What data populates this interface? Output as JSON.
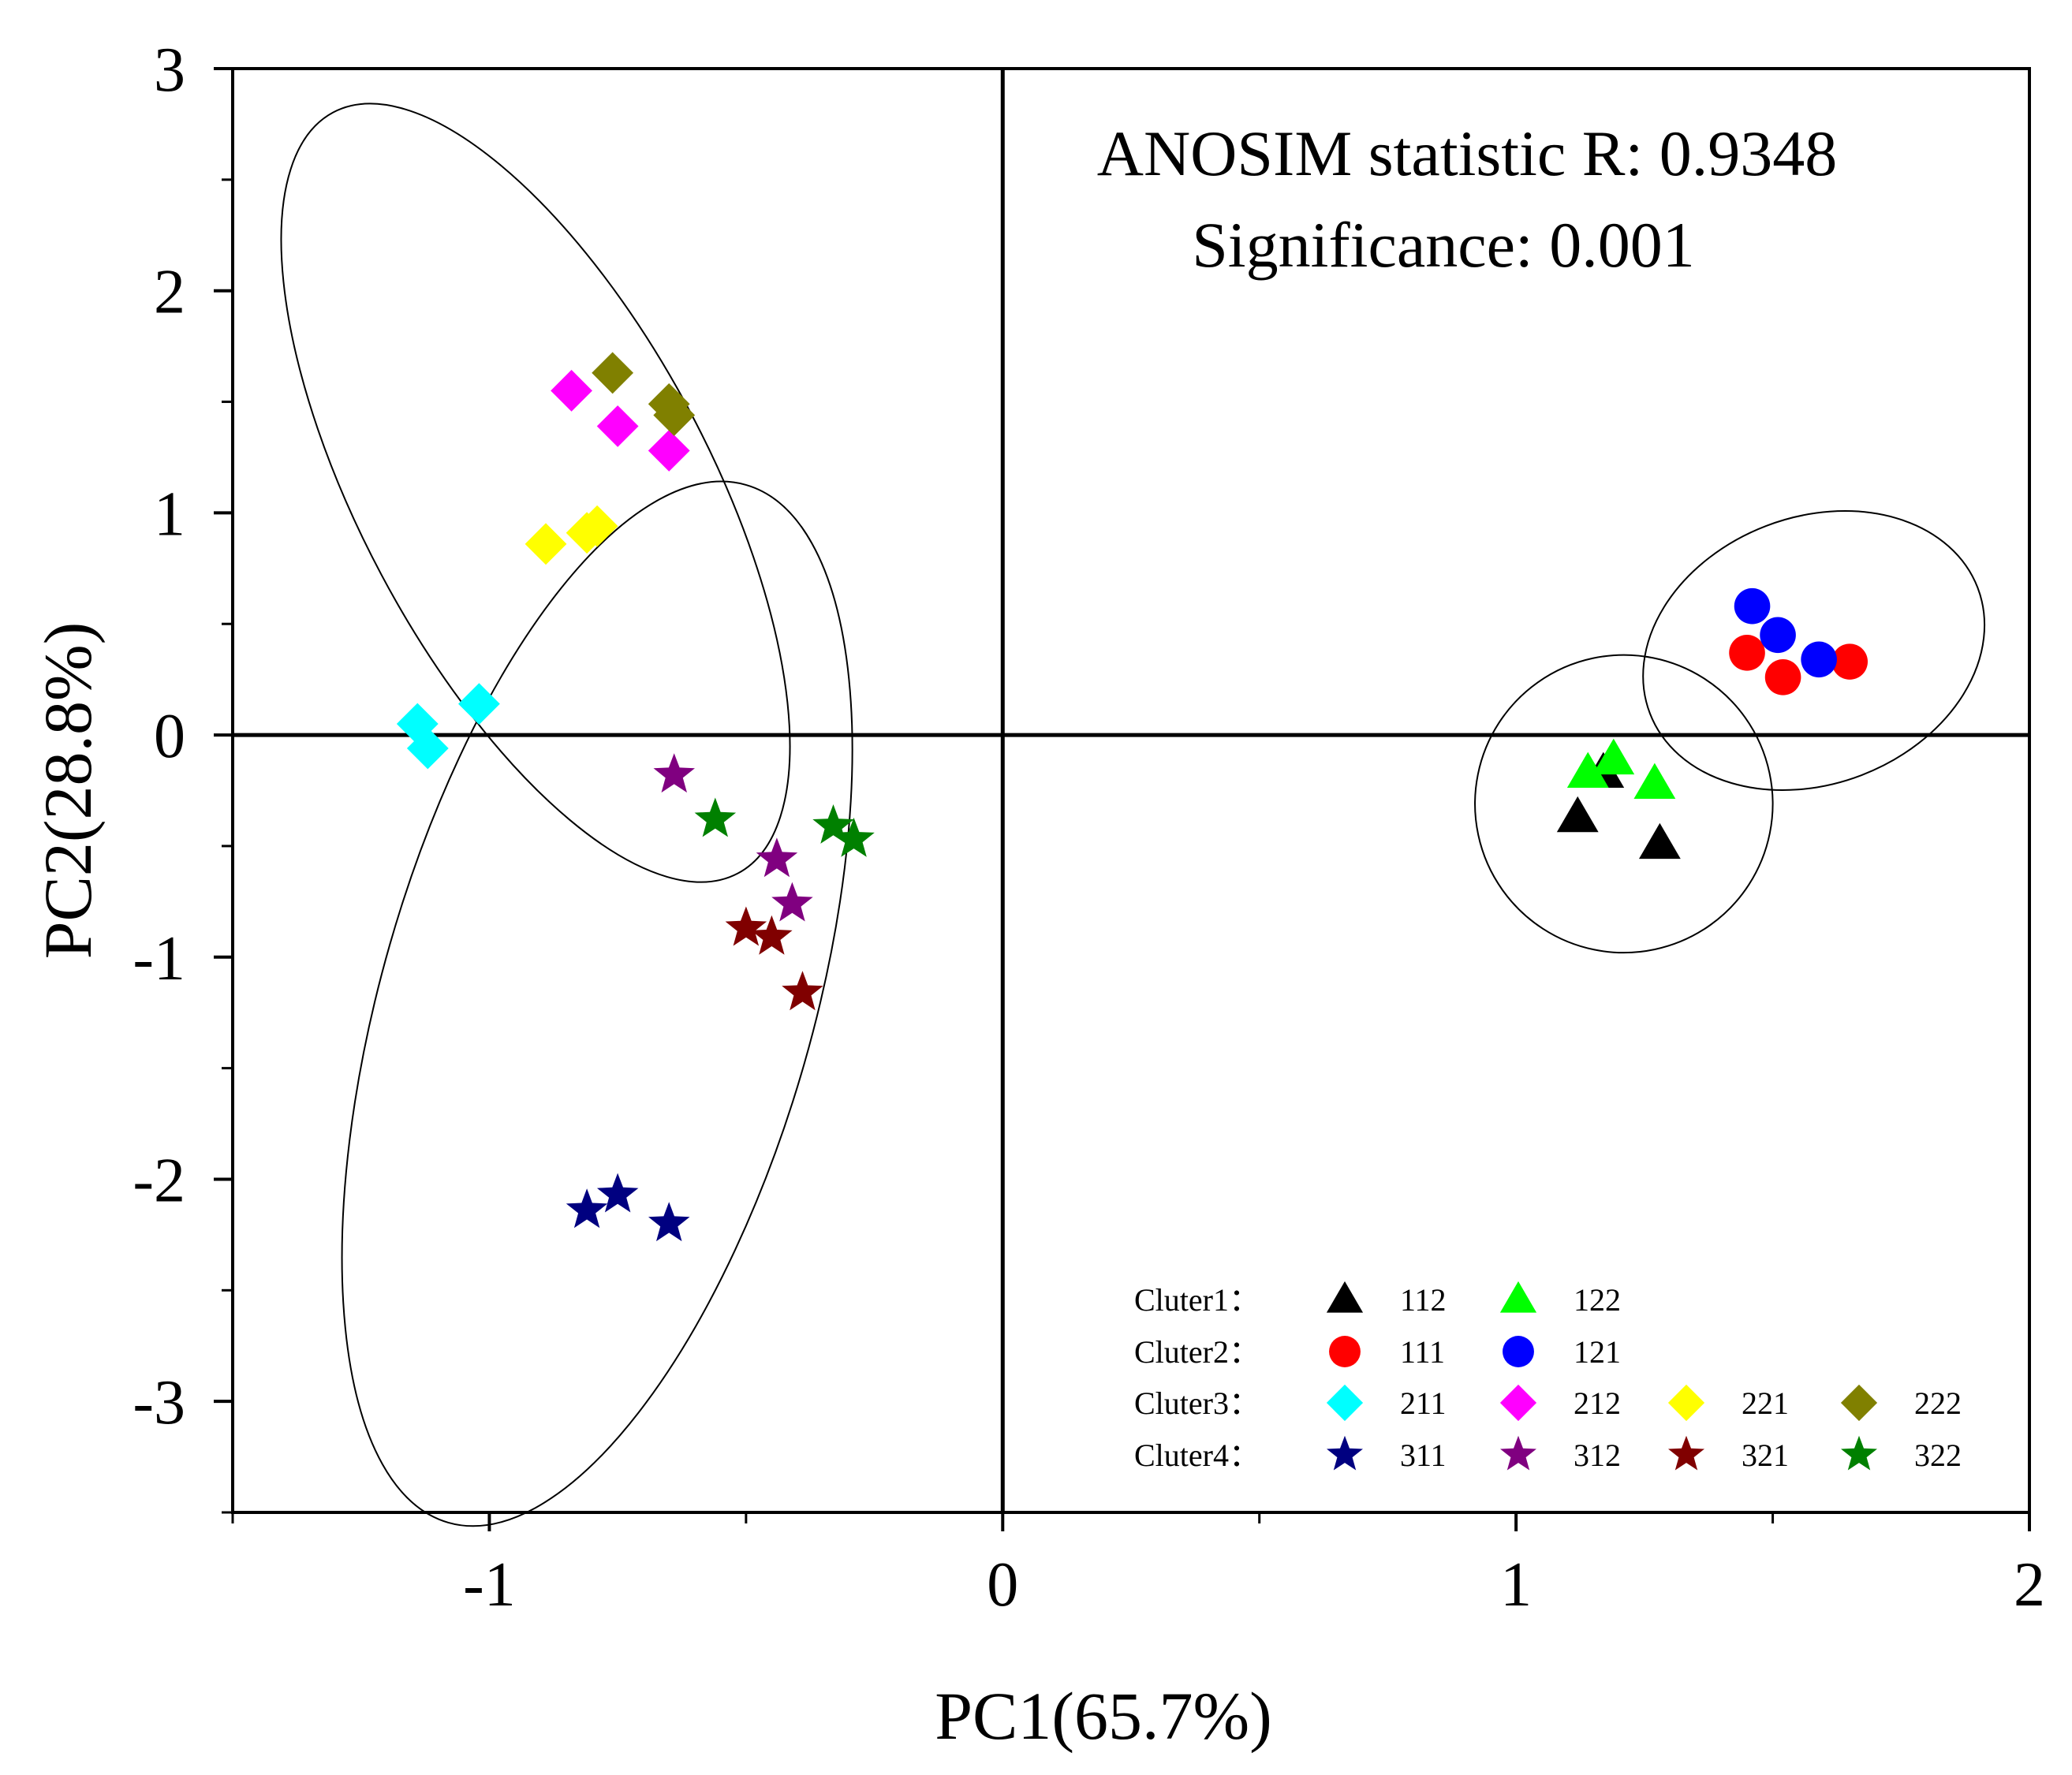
{
  "chart_data": {
    "type": "scatter",
    "title": "",
    "xlabel": "PC1(65.7%)",
    "ylabel": "PC2(28.8%)",
    "xlim": [
      -1.5,
      2
    ],
    "ylim": [
      -3.5,
      3
    ],
    "x_ticks": [
      -1,
      0,
      1,
      2
    ],
    "y_ticks": [
      -3,
      -2,
      -1,
      0,
      1,
      2,
      3
    ],
    "x_tick_labels": [
      "-1",
      "0",
      "1",
      "2"
    ],
    "y_tick_labels": [
      "-3",
      "-2",
      "-1",
      "0",
      "1",
      "2",
      "3"
    ],
    "grid": false,
    "reference_lines": {
      "x": 0,
      "y": 0
    },
    "annotations": [
      "ANOSIM statistic R: 0.9348",
      "Significance: 0.001"
    ],
    "legend_position": "bottom-right",
    "legend_groups": [
      {
        "label": "Cluter1：",
        "series": [
          "112",
          "122"
        ]
      },
      {
        "label": "Cluter2：",
        "series": [
          "111",
          "121"
        ]
      },
      {
        "label": "Cluter3：",
        "series": [
          "211",
          "212",
          "221",
          "222"
        ]
      },
      {
        "label": "Cluter4：",
        "series": [
          "311",
          "312",
          "321",
          "322"
        ]
      }
    ],
    "series": [
      {
        "name": "112",
        "marker": "triangle",
        "color": "#000000",
        "points": [
          [
            1.12,
            -0.37
          ],
          [
            1.28,
            -0.49
          ],
          [
            1.17,
            -0.17
          ]
        ]
      },
      {
        "name": "122",
        "marker": "triangle",
        "color": "#00ff00",
        "points": [
          [
            1.14,
            -0.17
          ],
          [
            1.19,
            -0.11
          ],
          [
            1.27,
            -0.22
          ]
        ]
      },
      {
        "name": "111",
        "marker": "circle",
        "color": "#ff0000",
        "points": [
          [
            1.45,
            0.37
          ],
          [
            1.52,
            0.26
          ],
          [
            1.65,
            0.33
          ]
        ]
      },
      {
        "name": "121",
        "marker": "circle",
        "color": "#0000ff",
        "points": [
          [
            1.46,
            0.58
          ],
          [
            1.51,
            0.45
          ],
          [
            1.59,
            0.34
          ]
        ]
      },
      {
        "name": "211",
        "marker": "diamond",
        "color": "#00ffff",
        "points": [
          [
            -1.14,
            0.05
          ],
          [
            -1.12,
            -0.06
          ],
          [
            -1.02,
            0.14
          ]
        ]
      },
      {
        "name": "212",
        "marker": "diamond",
        "color": "#ff00ff",
        "points": [
          [
            -0.84,
            1.55
          ],
          [
            -0.75,
            1.39
          ],
          [
            -0.65,
            1.28
          ]
        ]
      },
      {
        "name": "221",
        "marker": "diamond",
        "color": "#ffff00",
        "points": [
          [
            -0.89,
            0.86
          ],
          [
            -0.81,
            0.91
          ],
          [
            -0.79,
            0.94
          ]
        ]
      },
      {
        "name": "222",
        "marker": "diamond",
        "color": "#808000",
        "points": [
          [
            -0.76,
            1.63
          ],
          [
            -0.65,
            1.49
          ],
          [
            -0.64,
            1.44
          ]
        ]
      },
      {
        "name": "311",
        "marker": "star",
        "color": "#000080",
        "points": [
          [
            -0.81,
            -2.14
          ],
          [
            -0.75,
            -2.07
          ],
          [
            -0.65,
            -2.2
          ]
        ]
      },
      {
        "name": "312",
        "marker": "star",
        "color": "#800080",
        "points": [
          [
            -0.64,
            -0.18
          ],
          [
            -0.44,
            -0.56
          ],
          [
            -0.41,
            -0.76
          ]
        ]
      },
      {
        "name": "321",
        "marker": "star",
        "color": "#800000",
        "points": [
          [
            -0.5,
            -0.87
          ],
          [
            -0.45,
            -0.91
          ],
          [
            -0.39,
            -1.16
          ]
        ]
      },
      {
        "name": "322",
        "marker": "star",
        "color": "#008000",
        "points": [
          [
            -0.56,
            -0.38
          ],
          [
            -0.33,
            -0.41
          ],
          [
            -0.29,
            -0.47
          ]
        ]
      }
    ],
    "ellipses": [
      {
        "group": "Cluter3",
        "center": [
          -0.91,
          1.09
        ],
        "semi_axes": [
          0.34,
          1.94
        ],
        "rotation_deg": -28
      },
      {
        "group": "Cluter4",
        "center": [
          -0.79,
          -1.21
        ],
        "semi_axes": [
          0.42,
          2.43
        ],
        "rotation_deg": 16
      },
      {
        "group": "Cluter1",
        "center": [
          1.21,
          -0.31
        ],
        "semi_axes": [
          0.29,
          0.67
        ],
        "rotation_deg": 33
      },
      {
        "group": "Cluter2",
        "center": [
          1.58,
          0.38
        ],
        "semi_axes": [
          0.26,
          0.79
        ],
        "rotation_deg": 69
      }
    ]
  }
}
